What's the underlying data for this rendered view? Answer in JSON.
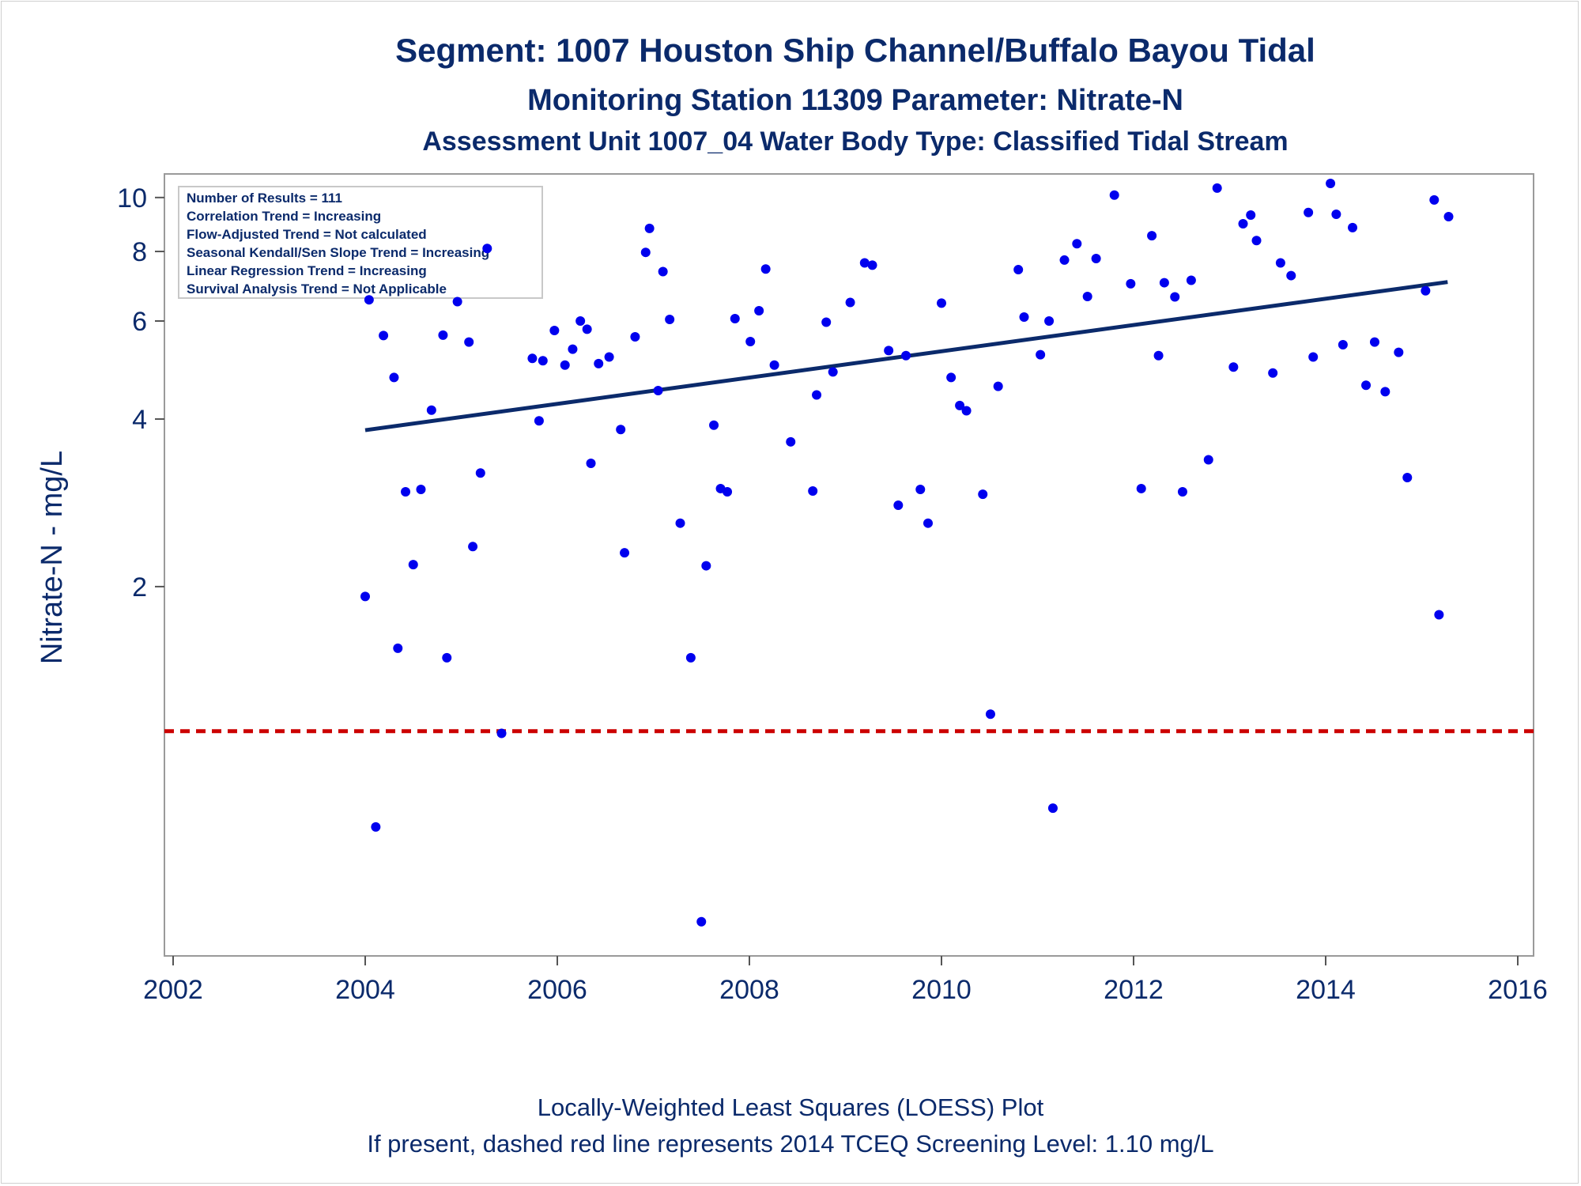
{
  "chart_data": {
    "type": "scatter",
    "title": "Segment: 1007  Houston Ship Channel/Buffalo Bayou Tidal",
    "subtitle": "Monitoring Station 11309 Parameter: Nitrate-N",
    "subtitle2": "Assessment Unit 1007_04   Water Body Type: Classified Tidal Stream",
    "ylabel": "Nitrate-N - mg/L",
    "xlabel": "",
    "y_scale": "log",
    "xlim": [
      2002,
      2016
    ],
    "ylim": [
      0.45,
      10.6
    ],
    "x_ticks": [
      2002,
      2004,
      2006,
      2008,
      2010,
      2012,
      2014,
      2016
    ],
    "y_ticks": [
      2,
      4,
      6,
      8,
      10
    ],
    "grid": false,
    "stats": [
      "Number of Results = 111",
      "Correlation Trend = Increasing",
      "Flow-Adjusted Trend = Not calculated",
      "Seasonal Kendall/Sen Slope Trend = Increasing",
      "Linear Regression Trend = Increasing",
      "Survival Analysis Trend = Not Applicable"
    ],
    "screening_level": 1.1,
    "screening_color": "#cc0000",
    "trend_color": "#0b2a6b",
    "point_color": "#0000ee",
    "trend_line": {
      "x": [
        2004.0,
        2015.27
      ],
      "y": [
        3.82,
        7.05
      ]
    },
    "points": [
      [
        2004.0,
        1.92
      ],
      [
        2004.04,
        6.55
      ],
      [
        2004.11,
        0.74
      ],
      [
        2004.19,
        5.65
      ],
      [
        2004.3,
        4.75
      ],
      [
        2004.34,
        1.55
      ],
      [
        2004.42,
        2.96
      ],
      [
        2004.5,
        2.19
      ],
      [
        2004.58,
        2.99
      ],
      [
        2004.69,
        4.15
      ],
      [
        2004.81,
        5.66
      ],
      [
        2004.85,
        1.49
      ],
      [
        2004.96,
        6.5
      ],
      [
        2005.08,
        5.5
      ],
      [
        2005.12,
        2.36
      ],
      [
        2005.2,
        3.2
      ],
      [
        2005.27,
        8.1
      ],
      [
        2005.42,
        1.09
      ],
      [
        2005.74,
        5.14
      ],
      [
        2005.81,
        3.97
      ],
      [
        2005.85,
        5.09
      ],
      [
        2005.97,
        5.77
      ],
      [
        2006.08,
        5.0
      ],
      [
        2006.16,
        5.34
      ],
      [
        2006.24,
        6.0
      ],
      [
        2006.31,
        5.8
      ],
      [
        2006.35,
        3.33
      ],
      [
        2006.43,
        5.03
      ],
      [
        2006.54,
        5.17
      ],
      [
        2006.66,
        3.83
      ],
      [
        2006.7,
        2.3
      ],
      [
        2006.81,
        5.62
      ],
      [
        2006.92,
        7.97
      ],
      [
        2006.96,
        8.8
      ],
      [
        2007.05,
        4.5
      ],
      [
        2007.1,
        7.36
      ],
      [
        2007.17,
        6.04
      ],
      [
        2007.28,
        2.6
      ],
      [
        2007.39,
        1.49
      ],
      [
        2007.5,
        0.5
      ],
      [
        2007.55,
        2.18
      ],
      [
        2007.63,
        3.9
      ],
      [
        2007.7,
        3.0
      ],
      [
        2007.77,
        2.96
      ],
      [
        2007.85,
        6.06
      ],
      [
        2008.01,
        5.51
      ],
      [
        2008.1,
        6.26
      ],
      [
        2008.17,
        7.44
      ],
      [
        2008.26,
        5.0
      ],
      [
        2008.43,
        3.64
      ],
      [
        2008.66,
        2.97
      ],
      [
        2008.7,
        4.42
      ],
      [
        2008.8,
        5.97
      ],
      [
        2008.87,
        4.86
      ],
      [
        2009.05,
        6.48
      ],
      [
        2009.2,
        7.63
      ],
      [
        2009.28,
        7.56
      ],
      [
        2009.45,
        5.31
      ],
      [
        2009.55,
        2.8
      ],
      [
        2009.63,
        5.2
      ],
      [
        2009.78,
        2.99
      ],
      [
        2009.86,
        2.6
      ],
      [
        2010.0,
        6.46
      ],
      [
        2010.1,
        4.75
      ],
      [
        2010.19,
        4.23
      ],
      [
        2010.26,
        4.14
      ],
      [
        2010.43,
        2.93
      ],
      [
        2010.51,
        1.18
      ],
      [
        2010.59,
        4.58
      ],
      [
        2010.8,
        7.42
      ],
      [
        2010.86,
        6.1
      ],
      [
        2011.03,
        5.22
      ],
      [
        2011.12,
        6.0
      ],
      [
        2011.16,
        0.8
      ],
      [
        2011.28,
        7.72
      ],
      [
        2011.41,
        8.26
      ],
      [
        2011.52,
        6.64
      ],
      [
        2011.61,
        7.77
      ],
      [
        2011.8,
        10.1
      ],
      [
        2011.97,
        7.0
      ],
      [
        2012.08,
        3.0
      ],
      [
        2012.19,
        8.54
      ],
      [
        2012.26,
        5.2
      ],
      [
        2012.32,
        7.03
      ],
      [
        2012.43,
        6.63
      ],
      [
        2012.51,
        2.96
      ],
      [
        2012.6,
        7.1
      ],
      [
        2012.78,
        3.38
      ],
      [
        2012.87,
        10.4
      ],
      [
        2013.04,
        4.96
      ],
      [
        2013.14,
        8.97
      ],
      [
        2013.22,
        9.3
      ],
      [
        2013.28,
        8.37
      ],
      [
        2013.45,
        4.84
      ],
      [
        2013.53,
        7.63
      ],
      [
        2013.64,
        7.24
      ],
      [
        2013.82,
        9.4
      ],
      [
        2013.87,
        5.17
      ],
      [
        2014.05,
        10.6
      ],
      [
        2014.11,
        9.33
      ],
      [
        2014.18,
        5.44
      ],
      [
        2014.28,
        8.83
      ],
      [
        2014.42,
        4.6
      ],
      [
        2014.51,
        5.5
      ],
      [
        2014.62,
        4.48
      ],
      [
        2014.76,
        5.27
      ],
      [
        2014.85,
        3.14
      ],
      [
        2015.04,
        6.8
      ],
      [
        2015.13,
        9.9
      ],
      [
        2015.18,
        1.78
      ],
      [
        2015.28,
        9.24
      ]
    ]
  }
}
